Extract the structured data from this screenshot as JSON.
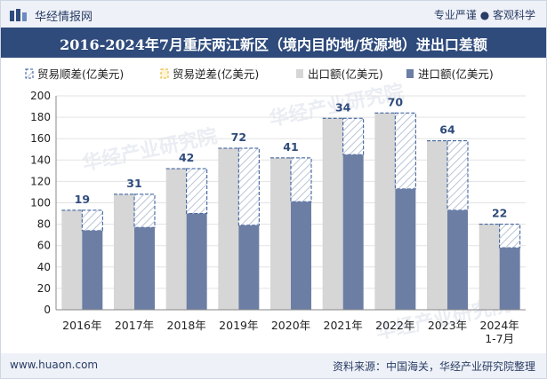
{
  "header": {
    "brand": "华经情报网",
    "tagline": "专业严谨 ● 客观科学"
  },
  "footer": {
    "url": "www.huaon.com",
    "source": "资料来源：中国海关，华经产业研究院整理"
  },
  "watermark": "华经产业研究院",
  "colors": {
    "export": "#d6d6d6",
    "import": "#6c7ea4",
    "surplus_stroke": "#2f5597",
    "deficit_stroke": "#e3b22f",
    "label": "#2f4b7c",
    "title_bg": "#2f4b7c"
  },
  "chart_data": {
    "type": "bar",
    "title": "2016-2024年7月重庆两江新区（境内目的地/货源地）进出口差额",
    "categories": [
      "2016年",
      "2017年",
      "2018年",
      "2019年",
      "2020年",
      "2021年",
      "2022年",
      "2023年",
      "2024年 1-7月"
    ],
    "series": [
      {
        "name": "贸易顺差(亿美元)",
        "values": [
          19,
          31,
          42,
          72,
          41,
          34,
          70,
          64,
          22
        ]
      },
      {
        "name": "贸易逆差(亿美元)",
        "values": [
          0,
          0,
          0,
          0,
          0,
          0,
          0,
          0,
          0
        ]
      },
      {
        "name": "出口额(亿美元)",
        "values": [
          93,
          108,
          132,
          151,
          142,
          179,
          184,
          158,
          80
        ]
      },
      {
        "name": "进口额(亿美元)",
        "values": [
          74,
          77,
          90,
          79,
          101,
          145,
          113,
          93,
          58
        ]
      }
    ],
    "data_labels": [
      "19",
      "31",
      "42",
      "72",
      "41",
      "34",
      "70",
      "64",
      "22"
    ],
    "yticks": [
      "0",
      "20",
      "40",
      "60",
      "80",
      "100",
      "120",
      "140",
      "160",
      "180",
      "200"
    ],
    "ylim": [
      0,
      200
    ],
    "grid": true,
    "legend_position": "top-center"
  }
}
